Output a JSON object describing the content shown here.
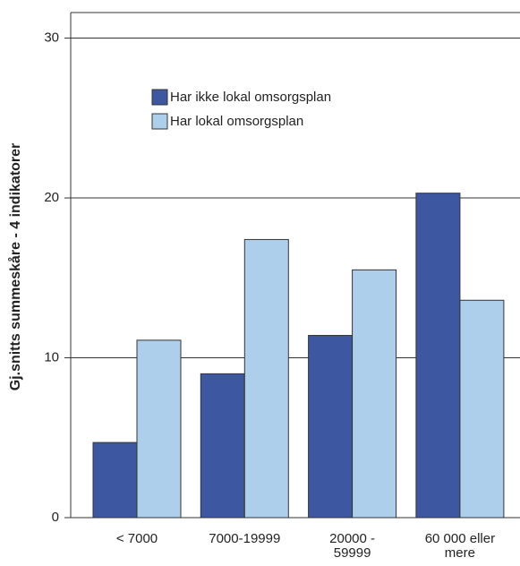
{
  "chart_data": {
    "type": "bar",
    "y_label": "Gj.snitts summeskåre - 4 indikatorer",
    "categories": [
      "< 7000",
      "7000-19999",
      "20000 - 59999",
      "60 000 eller mere"
    ],
    "series": [
      {
        "name": "Har ikke lokal omsorgsplan",
        "color": "#3d57a1",
        "values": [
          4.7,
          9.0,
          11.4,
          20.3
        ]
      },
      {
        "name": "Har lokal omsorgsplan",
        "color": "#aecfeb",
        "values": [
          11.1,
          17.4,
          15.5,
          13.6
        ]
      }
    ],
    "ylim": [
      0,
      31.6
    ],
    "yticks": [
      0,
      10,
      20,
      30
    ],
    "grid": true
  }
}
